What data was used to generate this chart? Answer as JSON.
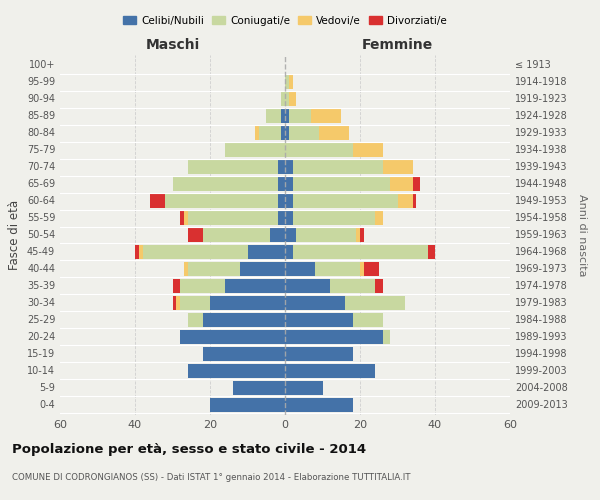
{
  "age_groups": [
    "0-4",
    "5-9",
    "10-14",
    "15-19",
    "20-24",
    "25-29",
    "30-34",
    "35-39",
    "40-44",
    "45-49",
    "50-54",
    "55-59",
    "60-64",
    "65-69",
    "70-74",
    "75-79",
    "80-84",
    "85-89",
    "90-94",
    "95-99",
    "100+"
  ],
  "birth_years": [
    "2009-2013",
    "2004-2008",
    "1999-2003",
    "1994-1998",
    "1989-1993",
    "1984-1988",
    "1979-1983",
    "1974-1978",
    "1969-1973",
    "1964-1968",
    "1959-1963",
    "1954-1958",
    "1949-1953",
    "1944-1948",
    "1939-1943",
    "1934-1938",
    "1929-1933",
    "1924-1928",
    "1919-1923",
    "1914-1918",
    "≤ 1913"
  ],
  "male": {
    "celibi": [
      20,
      14,
      26,
      22,
      28,
      22,
      20,
      16,
      12,
      10,
      4,
      2,
      2,
      2,
      2,
      0,
      1,
      1,
      0,
      0,
      0
    ],
    "coniugati": [
      0,
      0,
      0,
      0,
      0,
      4,
      8,
      12,
      14,
      28,
      18,
      24,
      30,
      28,
      24,
      16,
      6,
      4,
      1,
      0,
      0
    ],
    "vedovi": [
      0,
      0,
      0,
      0,
      0,
      0,
      1,
      0,
      1,
      1,
      0,
      1,
      0,
      0,
      0,
      0,
      1,
      0,
      0,
      0,
      0
    ],
    "divorziati": [
      0,
      0,
      0,
      0,
      0,
      0,
      1,
      2,
      0,
      1,
      4,
      1,
      4,
      0,
      0,
      0,
      0,
      0,
      0,
      0,
      0
    ]
  },
  "female": {
    "nubili": [
      18,
      10,
      24,
      18,
      26,
      18,
      16,
      12,
      8,
      2,
      3,
      2,
      2,
      2,
      2,
      0,
      1,
      1,
      0,
      0,
      0
    ],
    "coniugate": [
      0,
      0,
      0,
      0,
      2,
      8,
      16,
      12,
      12,
      36,
      16,
      22,
      28,
      26,
      24,
      18,
      8,
      6,
      1,
      1,
      0
    ],
    "vedove": [
      0,
      0,
      0,
      0,
      0,
      0,
      0,
      0,
      1,
      0,
      1,
      2,
      4,
      6,
      8,
      8,
      8,
      8,
      2,
      1,
      0
    ],
    "divorziate": [
      0,
      0,
      0,
      0,
      0,
      0,
      0,
      2,
      4,
      2,
      1,
      0,
      1,
      2,
      0,
      0,
      0,
      0,
      0,
      0,
      0
    ]
  },
  "colors": {
    "celibi": "#4472a8",
    "coniugati": "#c8d8a0",
    "vedovi": "#f5c96a",
    "divorziati": "#d93030"
  },
  "xlim": 60,
  "title": "Popolazione per età, sesso e stato civile - 2014",
  "subtitle": "COMUNE DI CODRONGIANOS (SS) - Dati ISTAT 1° gennaio 2014 - Elaborazione TUTTITALIA.IT",
  "ylabel_left": "Fasce di età",
  "ylabel_right": "Anni di nascita",
  "legend_labels": [
    "Celibi/Nubili",
    "Coniugati/e",
    "Vedovi/e",
    "Divorziati/e"
  ],
  "background_color": "#f0f0eb"
}
